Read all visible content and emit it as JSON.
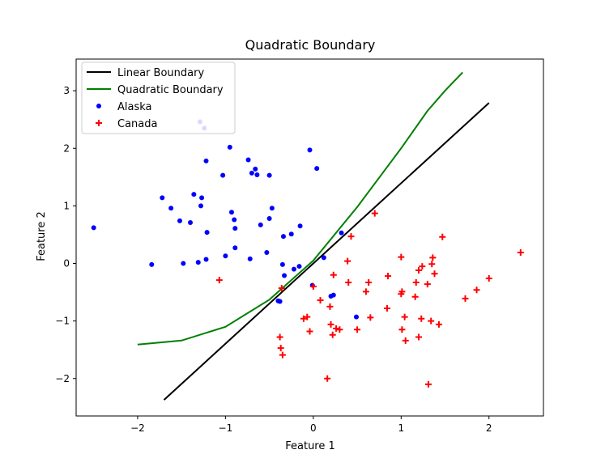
{
  "chart_data": {
    "type": "scatter",
    "title": "Quadratic Boundary",
    "xlabel": "Feature 1",
    "ylabel": "Feature 2",
    "xlim": [
      -2.7,
      2.62
    ],
    "ylim": [
      -2.65,
      3.55
    ],
    "xticks": [
      -2,
      -1,
      0,
      1,
      2
    ],
    "yticks": [
      -2,
      -1,
      0,
      1,
      2,
      3
    ],
    "grid": false,
    "legend_position": "top-left",
    "series": [
      {
        "name": "Linear Boundary",
        "kind": "line",
        "color": "#000000",
        "x": [
          -1.7,
          2.0
        ],
        "y": [
          -2.37,
          2.79
        ]
      },
      {
        "name": "Quadratic Boundary",
        "kind": "line",
        "color": "#008000",
        "x": [
          -2.0,
          -1.5,
          -1.0,
          -0.5,
          0.0,
          0.5,
          1.0,
          1.3,
          1.5,
          1.7
        ],
        "y": [
          -1.41,
          -1.34,
          -1.1,
          -0.63,
          0.05,
          0.98,
          2.0,
          2.65,
          3.0,
          3.32
        ]
      },
      {
        "name": "Alaska",
        "kind": "scatter",
        "marker": "dot",
        "color": "#0000ff",
        "x": [
          -2.5,
          -1.84,
          -1.72,
          -1.62,
          -1.52,
          -1.48,
          -1.4,
          -1.36,
          -1.31,
          -1.29,
          -1.27,
          -1.22,
          -1.21,
          -1.22,
          -1.28,
          -1.24,
          -1.03,
          -0.95,
          -0.93,
          -0.9,
          -0.89,
          -0.89,
          -1.0,
          -0.74,
          -0.72,
          -0.7,
          -0.66,
          -0.64,
          -0.6,
          -0.53,
          -0.5,
          -0.5,
          -0.47,
          -0.4,
          -0.35,
          -0.34,
          -0.33,
          -0.25,
          -0.22,
          -0.16,
          -0.15,
          -0.04,
          -0.01,
          0.04,
          0.12,
          0.2,
          0.23,
          0.49,
          -0.38,
          0.32
        ],
        "y": [
          0.62,
          -0.02,
          1.14,
          0.96,
          0.74,
          0.0,
          0.71,
          1.2,
          0.02,
          2.46,
          1.14,
          0.07,
          0.54,
          1.78,
          1.0,
          2.35,
          1.53,
          2.02,
          0.89,
          0.76,
          0.61,
          0.27,
          0.13,
          1.8,
          0.08,
          1.57,
          1.64,
          1.54,
          0.67,
          0.19,
          1.53,
          0.78,
          0.96,
          -0.65,
          -0.02,
          0.47,
          -0.21,
          0.51,
          -0.1,
          -0.05,
          0.65,
          1.97,
          -0.38,
          1.65,
          0.1,
          -0.57,
          -0.55,
          -0.93,
          -0.66,
          0.53
        ]
      },
      {
        "name": "Canada",
        "kind": "scatter",
        "marker": "plus",
        "color": "#ff0000",
        "x": [
          -1.07,
          -0.38,
          -0.37,
          -0.35,
          -0.36,
          -0.11,
          -0.07,
          -0.04,
          0.0,
          0.08,
          0.16,
          0.19,
          0.2,
          0.22,
          0.23,
          0.26,
          0.3,
          0.39,
          0.4,
          0.43,
          0.5,
          0.6,
          0.63,
          0.65,
          0.7,
          0.84,
          0.85,
          1.0,
          1.0,
          1.01,
          1.01,
          1.04,
          1.05,
          1.16,
          1.17,
          1.2,
          1.2,
          1.23,
          1.24,
          1.3,
          1.31,
          1.34,
          1.35,
          1.36,
          1.38,
          1.43,
          1.47,
          1.73,
          1.86,
          2.0,
          2.36
        ],
        "y": [
          -0.29,
          -1.28,
          -1.47,
          -1.59,
          -0.43,
          -0.96,
          -0.93,
          -1.18,
          -0.4,
          -0.64,
          -2.0,
          -0.75,
          -1.06,
          -1.24,
          -0.2,
          -1.13,
          -1.15,
          0.04,
          -0.33,
          0.47,
          -1.15,
          -0.49,
          -0.33,
          -0.94,
          0.87,
          -0.78,
          -0.22,
          0.11,
          -0.53,
          -1.15,
          -0.49,
          -0.93,
          -1.34,
          -0.58,
          -0.33,
          -1.28,
          -0.12,
          -0.96,
          -0.05,
          -0.36,
          -2.1,
          -1.0,
          -0.01,
          0.1,
          -0.18,
          -1.06,
          0.46,
          -0.61,
          -0.46,
          -0.26,
          0.19
        ]
      }
    ]
  }
}
